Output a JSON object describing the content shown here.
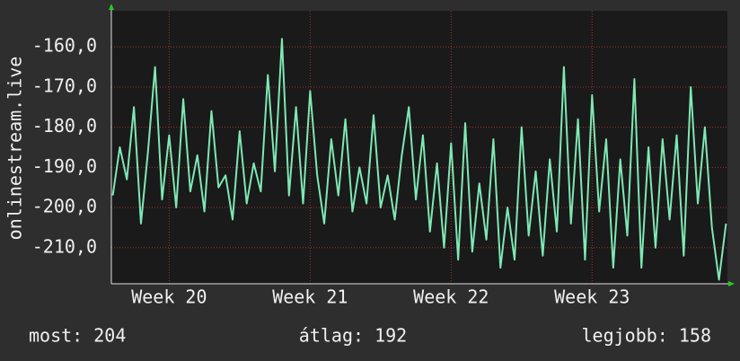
{
  "chart_data": {
    "type": "line",
    "y_label": "onlinestream.live",
    "xlim": [
      19.59,
      23.96
    ],
    "ylim": [
      -219,
      -151
    ],
    "xticks": [
      {
        "value": 20,
        "label": "Week 20"
      },
      {
        "value": 21,
        "label": "Week 21"
      },
      {
        "value": 22,
        "label": "Week 22"
      },
      {
        "value": 23,
        "label": "Week 23"
      }
    ],
    "yticks": [
      {
        "value": -160,
        "label": "-160,0"
      },
      {
        "value": -170,
        "label": "-170,0"
      },
      {
        "value": -180,
        "label": "-180,0"
      },
      {
        "value": -190,
        "label": "-190,0"
      },
      {
        "value": -200,
        "label": "-200,0"
      },
      {
        "value": -210,
        "label": "-210,0"
      }
    ],
    "grid": true,
    "series": [
      {
        "color": "#7ee8b4",
        "x": [
          19.6,
          19.65,
          19.7,
          19.75,
          19.8,
          19.85,
          19.9,
          19.95,
          20.0,
          20.05,
          20.1,
          20.15,
          20.2,
          20.25,
          20.3,
          20.35,
          20.4,
          20.45,
          20.5,
          20.55,
          20.6,
          20.65,
          20.7,
          20.75,
          20.8,
          20.85,
          20.9,
          20.95,
          21.0,
          21.05,
          21.1,
          21.15,
          21.2,
          21.25,
          21.3,
          21.35,
          21.4,
          21.45,
          21.5,
          21.55,
          21.6,
          21.65,
          21.7,
          21.75,
          21.8,
          21.85,
          21.9,
          21.95,
          22.0,
          22.05,
          22.1,
          22.15,
          22.2,
          22.25,
          22.3,
          22.35,
          22.4,
          22.45,
          22.5,
          22.55,
          22.6,
          22.65,
          22.7,
          22.75,
          22.8,
          22.85,
          22.9,
          22.95,
          23.0,
          23.05,
          23.1,
          23.15,
          23.2,
          23.25,
          23.3,
          23.35,
          23.4,
          23.45,
          23.5,
          23.55,
          23.6,
          23.65,
          23.7,
          23.75,
          23.8,
          23.85,
          23.9,
          23.95
        ],
        "values": [
          -197,
          -185,
          -193,
          -175,
          -204,
          -186,
          -165,
          -198,
          -182,
          -200,
          -173,
          -196,
          -187,
          -201,
          -176,
          -195,
          -192,
          -203,
          -181,
          -199,
          -189,
          -196,
          -167,
          -191,
          -158,
          -197,
          -175,
          -199,
          -171,
          -192,
          -204,
          -183,
          -197,
          -178,
          -201,
          -190,
          -199,
          -177,
          -200,
          -192,
          -203,
          -187,
          -175,
          -198,
          -182,
          -206,
          -189,
          -210,
          -184,
          -213,
          -179,
          -211,
          -194,
          -208,
          -183,
          -215,
          -200,
          -213,
          -180,
          -207,
          -191,
          -212,
          -188,
          -206,
          -165,
          -204,
          -178,
          -213,
          -172,
          -201,
          -183,
          -215,
          -188,
          -207,
          -168,
          -215,
          -185,
          -210,
          -183,
          -203,
          -182,
          -212,
          -170,
          -199,
          -180,
          -205,
          -218,
          -204
        ]
      }
    ],
    "footer": {
      "current": "most: 204",
      "average": "átlag: 192",
      "best": "legjobb: 158"
    }
  }
}
